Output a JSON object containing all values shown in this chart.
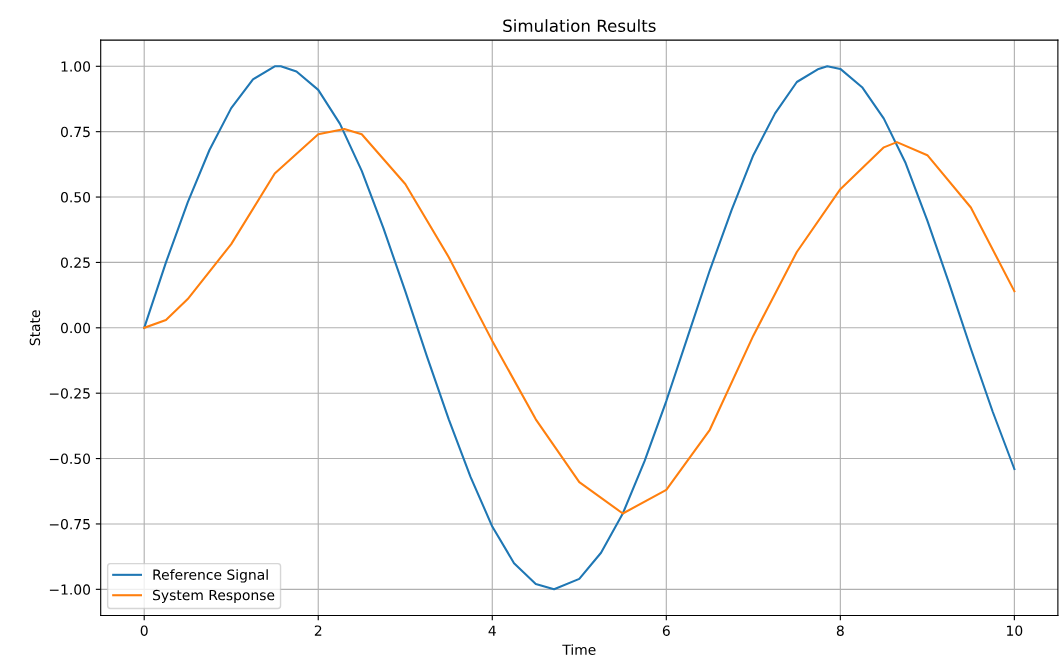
{
  "chart_data": {
    "type": "line",
    "title": "Simulation Results",
    "xlabel": "Time",
    "ylabel": "State",
    "xlim": [
      -0.5,
      10.5
    ],
    "xticks": [
      0,
      2,
      4,
      6,
      8,
      10
    ],
    "ylim": [
      -1.1,
      1.1
    ],
    "yticks": [
      {
        "value": -1,
        "label": "−1.00"
      },
      {
        "value": -0.75,
        "label": "−0.75"
      },
      {
        "value": -0.5,
        "label": "−0.50"
      },
      {
        "value": -0.25,
        "label": "−0.25"
      },
      {
        "value": 0,
        "label": "0.00"
      },
      {
        "value": 0.25,
        "label": "0.25"
      },
      {
        "value": 0.5,
        "label": "0.50"
      },
      {
        "value": 0.75,
        "label": "0.75"
      },
      {
        "value": 1,
        "label": "1.00"
      }
    ],
    "grid": true,
    "legend": "bottom left",
    "series": [
      {
        "name": "Reference Signal",
        "color": "#1f77b4",
        "x": [
          0,
          0.25,
          0.5,
          0.75,
          1,
          1.25,
          1.5,
          1.57,
          1.75,
          2,
          2.25,
          2.5,
          2.75,
          3,
          3.25,
          3.5,
          3.75,
          4,
          4.25,
          4.5,
          4.71,
          5,
          5.25,
          5.5,
          5.75,
          6,
          6.25,
          6.5,
          6.75,
          7,
          7.25,
          7.5,
          7.75,
          7.85,
          8,
          8.25,
          8.5,
          8.75,
          9,
          9.25,
          9.5,
          9.75,
          10
        ],
        "values": [
          0,
          0.25,
          0.48,
          0.68,
          0.84,
          0.95,
          1.0,
          1.0,
          0.98,
          0.91,
          0.78,
          0.6,
          0.38,
          0.14,
          -0.11,
          -0.35,
          -0.57,
          -0.76,
          -0.9,
          -0.98,
          -1.0,
          -0.96,
          -0.86,
          -0.71,
          -0.51,
          -0.28,
          -0.03,
          0.22,
          0.45,
          0.66,
          0.82,
          0.94,
          0.99,
          1.0,
          0.99,
          0.92,
          0.8,
          0.63,
          0.41,
          0.17,
          -0.08,
          -0.32,
          -0.54
        ]
      },
      {
        "name": "System Response",
        "color": "#ff7f0e",
        "x": [
          0,
          0.25,
          0.5,
          1,
          1.5,
          2,
          2.3,
          2.5,
          3,
          3.5,
          4,
          4.5,
          5,
          5.5,
          6,
          6.5,
          7,
          7.5,
          8,
          8.5,
          8.65,
          9,
          9.5,
          10
        ],
        "values": [
          0,
          0.03,
          0.11,
          0.32,
          0.59,
          0.74,
          0.76,
          0.74,
          0.55,
          0.27,
          -0.05,
          -0.35,
          -0.59,
          -0.71,
          -0.62,
          -0.39,
          -0.03,
          0.29,
          0.53,
          0.69,
          0.71,
          0.66,
          0.46,
          0.14
        ]
      }
    ]
  }
}
